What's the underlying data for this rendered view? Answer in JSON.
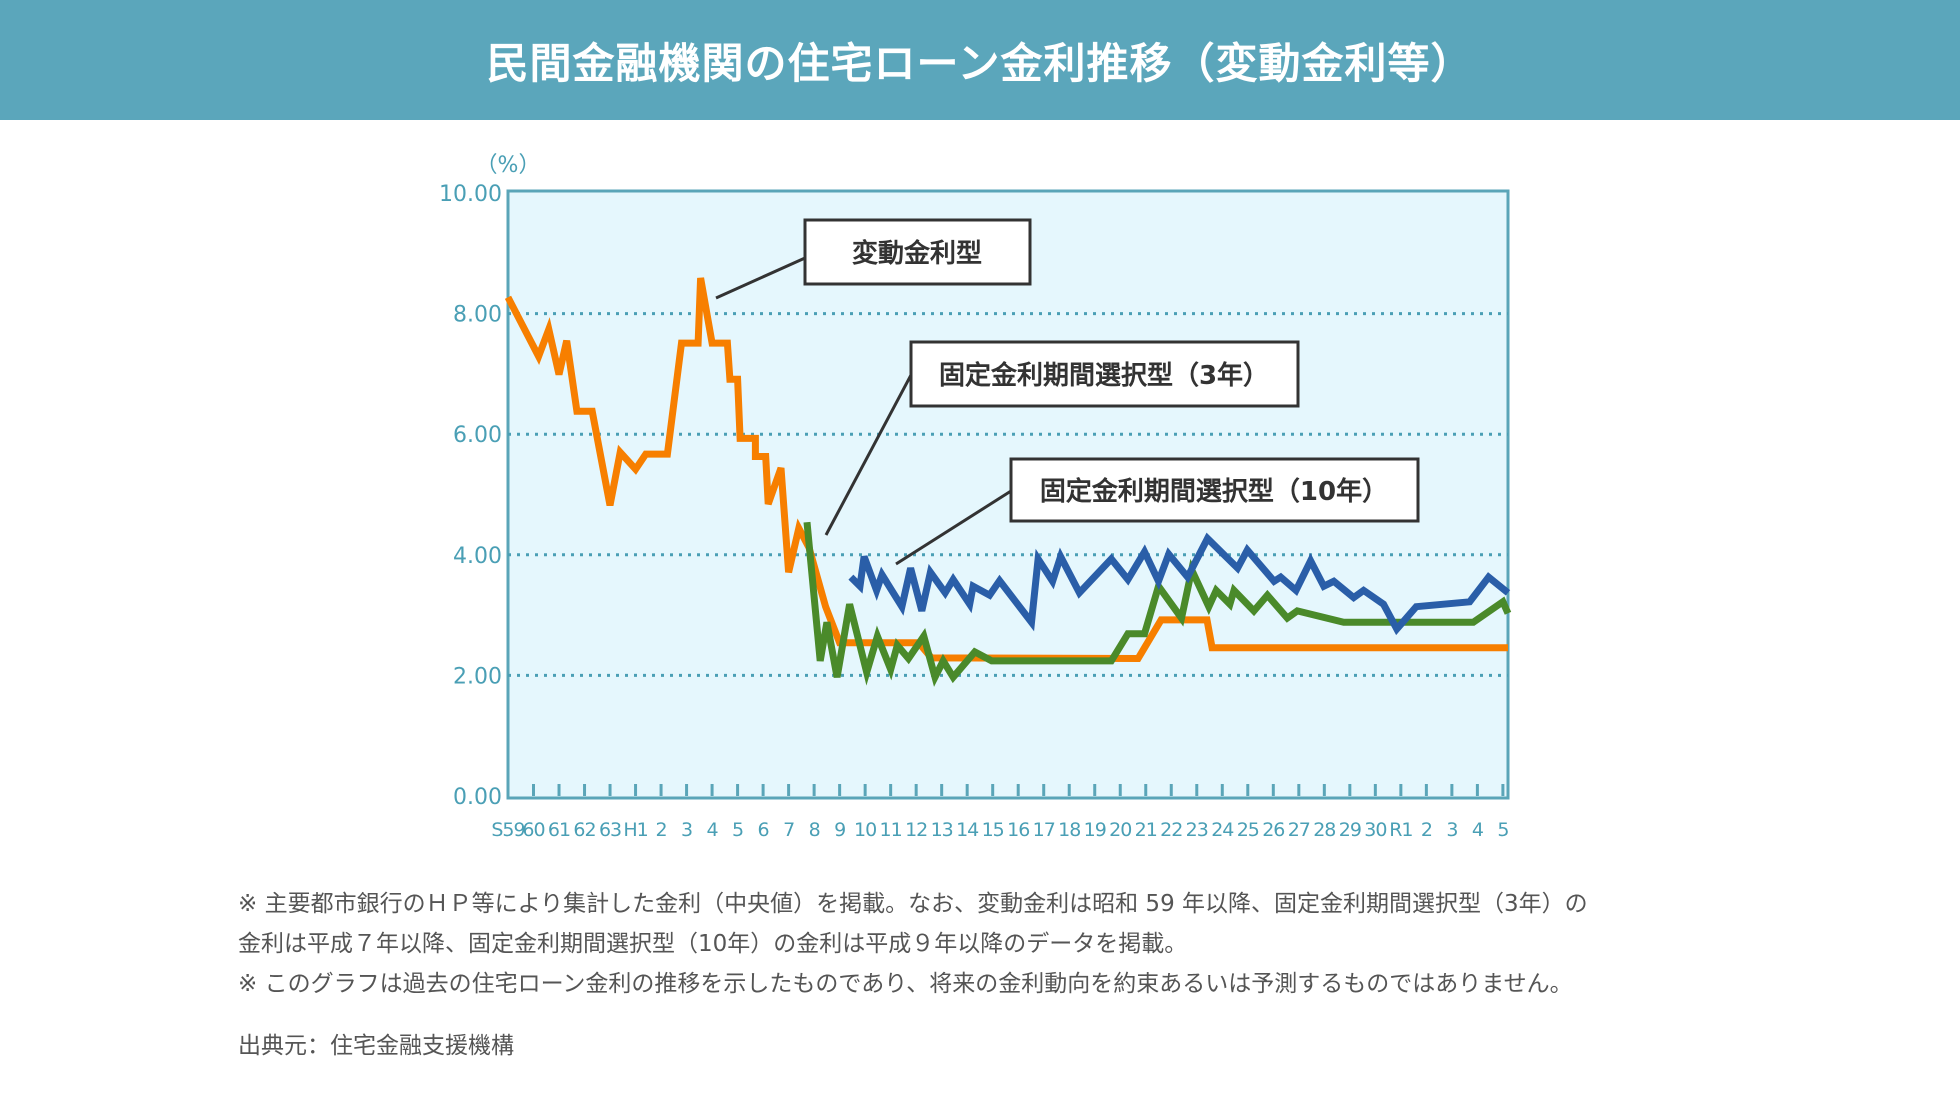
{
  "header": {
    "title": "民間金融機関の住宅ローン金利推移（変動金利等）"
  },
  "chart_data": {
    "type": "line",
    "title": "民間金融機関の住宅ローン金利推移（変動金利等）",
    "ylabel": "（%）",
    "ylim": [
      0,
      10
    ],
    "xlim": [
      1984,
      2023.2
    ],
    "yticks": [
      "0.00",
      "2.00",
      "4.00",
      "6.00",
      "8.00",
      "10.00"
    ],
    "ytick_values": [
      0,
      2,
      4,
      6,
      8,
      10
    ],
    "grid": "horizontal dotted",
    "xtick_labels": [
      "S59",
      "60",
      "61",
      "62",
      "63",
      "H1",
      "2",
      "3",
      "4",
      "5",
      "6",
      "7",
      "8",
      "9",
      "10",
      "11",
      "12",
      "13",
      "14",
      "15",
      "16",
      "17",
      "18",
      "19",
      "20",
      "21",
      "22",
      "23",
      "24",
      "25",
      "26",
      "27",
      "28",
      "29",
      "30",
      "R1",
      "2",
      "3",
      "4",
      "5"
    ],
    "xtick_years": [
      1984,
      1985,
      1986,
      1987,
      1988,
      1989,
      1990,
      1991,
      1992,
      1993,
      1994,
      1995,
      1996,
      1997,
      1998,
      1999,
      2000,
      2001,
      2002,
      2003,
      2004,
      2005,
      2006,
      2007,
      2008,
      2009,
      2010,
      2011,
      2012,
      2013,
      2014,
      2015,
      2016,
      2017,
      2018,
      2019,
      2020,
      2021,
      2022,
      2023
    ],
    "series": [
      {
        "name": "変動金利型",
        "color": "#f77f00",
        "x": [
          1984.0,
          1985.2,
          1985.6,
          1986.0,
          1986.3,
          1986.7,
          1987.3,
          1988.0,
          1988.4,
          1989.0,
          1989.4,
          1990.25,
          1990.8,
          1991.45,
          1991.55,
          1992.0,
          1992.6,
          1992.7,
          1993.0,
          1993.1,
          1993.7,
          1993.7,
          1994.1,
          1994.2,
          1994.7,
          1995.0,
          1995.4,
          1995.8,
          1996.45,
          1997.0,
          2000.1,
          2000.6,
          2008.7,
          2009.6,
          2011.4,
          2011.6,
          2023.2
        ],
        "y": [
          8.27,
          7.29,
          7.74,
          6.99,
          7.55,
          6.38,
          6.38,
          4.82,
          5.7,
          5.42,
          5.67,
          5.67,
          7.51,
          7.51,
          8.59,
          7.51,
          7.51,
          6.91,
          6.91,
          5.93,
          5.93,
          5.63,
          5.63,
          4.84,
          5.44,
          3.71,
          4.44,
          4.12,
          3.14,
          2.54,
          2.54,
          2.29,
          2.28,
          2.92,
          2.92,
          2.46,
          2.46
        ]
      },
      {
        "name": "固定金利期間選択型（3年）",
        "color": "#4a8a2a",
        "x": [
          1995.72,
          1996.24,
          1996.5,
          1996.9,
          1997.39,
          1998.06,
          1998.48,
          1999.0,
          1999.26,
          1999.7,
          2000.3,
          2000.74,
          2001.06,
          2001.45,
          2002.3,
          2002.96,
          2007.65,
          2008.3,
          2008.95,
          2009.5,
          2010.4,
          2010.8,
          2011.47,
          2011.76,
          2012.3,
          2012.46,
          2013.24,
          2013.77,
          2014.55,
          2014.94,
          2016.76,
          2021.84,
          2023.0,
          2023.2
        ],
        "y": [
          4.54,
          2.24,
          2.88,
          1.97,
          3.18,
          2.05,
          2.65,
          2.1,
          2.5,
          2.28,
          2.65,
          1.97,
          2.24,
          1.97,
          2.39,
          2.24,
          2.24,
          2.69,
          2.69,
          3.48,
          2.95,
          3.75,
          3.14,
          3.41,
          3.18,
          3.41,
          3.07,
          3.33,
          2.95,
          3.07,
          2.88,
          2.88,
          3.22,
          3.03
        ]
      },
      {
        "name": "固定金利期間選択型（10年）",
        "color": "#2a5ea8",
        "x": [
          1997.44,
          1997.8,
          1997.96,
          1998.45,
          1998.66,
          1999.44,
          1999.78,
          2000.22,
          2000.56,
          2001.14,
          2001.45,
          2002.1,
          2002.23,
          2002.88,
          2003.27,
          2004.52,
          2004.78,
          2005.35,
          2005.66,
          2006.4,
          2007.65,
          2008.3,
          2008.95,
          2009.5,
          2009.9,
          2010.64,
          2011.42,
          2012.6,
          2012.98,
          2014.03,
          2014.29,
          2014.89,
          2015.46,
          2015.98,
          2016.37,
          2017.15,
          2017.54,
          2018.32,
          2018.84,
          2019.6,
          2021.7,
          2022.44,
          2023.2
        ],
        "y": [
          3.63,
          3.48,
          3.97,
          3.41,
          3.67,
          3.14,
          3.78,
          3.07,
          3.71,
          3.37,
          3.59,
          3.18,
          3.48,
          3.33,
          3.57,
          2.88,
          3.93,
          3.56,
          3.97,
          3.37,
          3.93,
          3.59,
          4.05,
          3.56,
          4.01,
          3.63,
          4.27,
          3.78,
          4.08,
          3.56,
          3.63,
          3.41,
          3.9,
          3.48,
          3.56,
          3.29,
          3.41,
          3.18,
          2.77,
          3.14,
          3.22,
          3.63,
          3.37
        ]
      }
    ],
    "annotations": [
      "変動金利型",
      "固定金利期間選択型（3年）",
      "固定金利期間選択型（10年）"
    ]
  },
  "notes": [
    "※ 主要都市銀行のＨＰ等により集計した金利（中央値）を掲載。なお、変動金利は昭和 59 年以降、固定金利期間選択型（3年）の",
    "金利は平成７年以降、固定金利期間選択型（10年）の金利は平成９年以降のデータを掲載。",
    "※ このグラフは過去の住宅ローン金利の推移を示したものであり、将来の金利動向を約束あるいは予測するものではありません。"
  ],
  "source": "出典元：住宅金融支援機構"
}
